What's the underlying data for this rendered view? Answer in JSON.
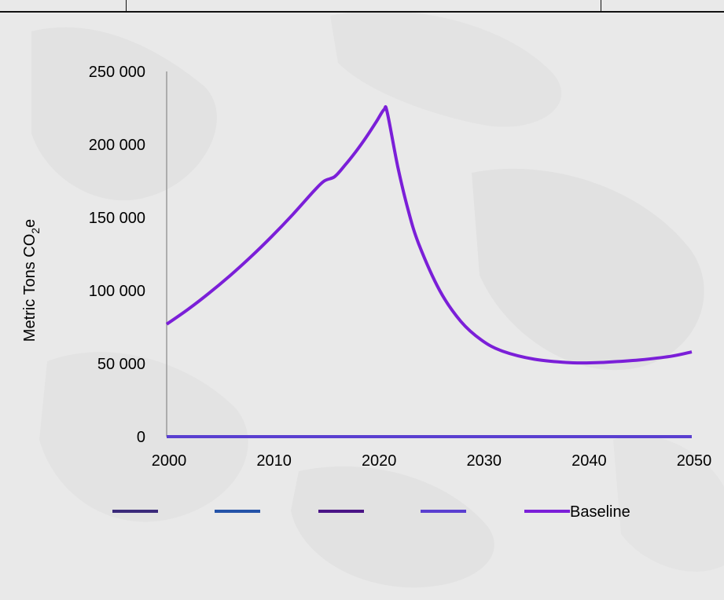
{
  "chart_data": {
    "type": "line",
    "ylabel": "Metric Tons CO",
    "ylabel_sub": "2",
    "ylabel_suffix": "e",
    "xlim": [
      2000,
      2050
    ],
    "ylim": [
      0,
      250000
    ],
    "x_ticks": [
      2000,
      2010,
      2020,
      2030,
      2040,
      2050
    ],
    "x_tick_labels": [
      "2000",
      "2010",
      "2020",
      "2030",
      "2040",
      "2050"
    ],
    "y_ticks": [
      0,
      50000,
      100000,
      150000,
      200000,
      250000
    ],
    "y_tick_labels": [
      "0",
      "50 000",
      "100 000",
      "150 000",
      "200 000",
      "250 000"
    ],
    "grid": false,
    "legend_position": "bottom",
    "series": [
      {
        "name": "",
        "color": "#3b2a7a",
        "x": [
          2000,
          2050
        ],
        "values": [
          0,
          0
        ]
      },
      {
        "name": "",
        "color": "#2453a8",
        "x": [
          2000,
          2050
        ],
        "values": [
          0,
          0
        ]
      },
      {
        "name": "",
        "color": "#4a1486",
        "x": [
          2000,
          2050
        ],
        "values": [
          0,
          0
        ]
      },
      {
        "name": "",
        "color": "#5a3fd0",
        "x": [
          2000,
          2050
        ],
        "values": [
          0,
          0
        ]
      },
      {
        "name": "Baseline",
        "color": "#7b1fd8",
        "x": [
          2000,
          2002,
          2004,
          2006,
          2008,
          2010,
          2012,
          2014,
          2015,
          2016,
          2017,
          2018,
          2019,
          2020,
          2020.7,
          2021,
          2022,
          2023,
          2024,
          2026,
          2028,
          2030,
          2032,
          2035,
          2038,
          2040,
          2042,
          2045,
          2048,
          2050
        ],
        "values": [
          77000,
          87000,
          98000,
          110000,
          123000,
          137000,
          152000,
          168000,
          175000,
          178000,
          186000,
          195000,
          205000,
          216000,
          224000,
          222000,
          185000,
          155000,
          132000,
          100000,
          79000,
          66000,
          58500,
          53000,
          50800,
          50500,
          51000,
          52500,
          55000,
          58000
        ]
      }
    ]
  }
}
